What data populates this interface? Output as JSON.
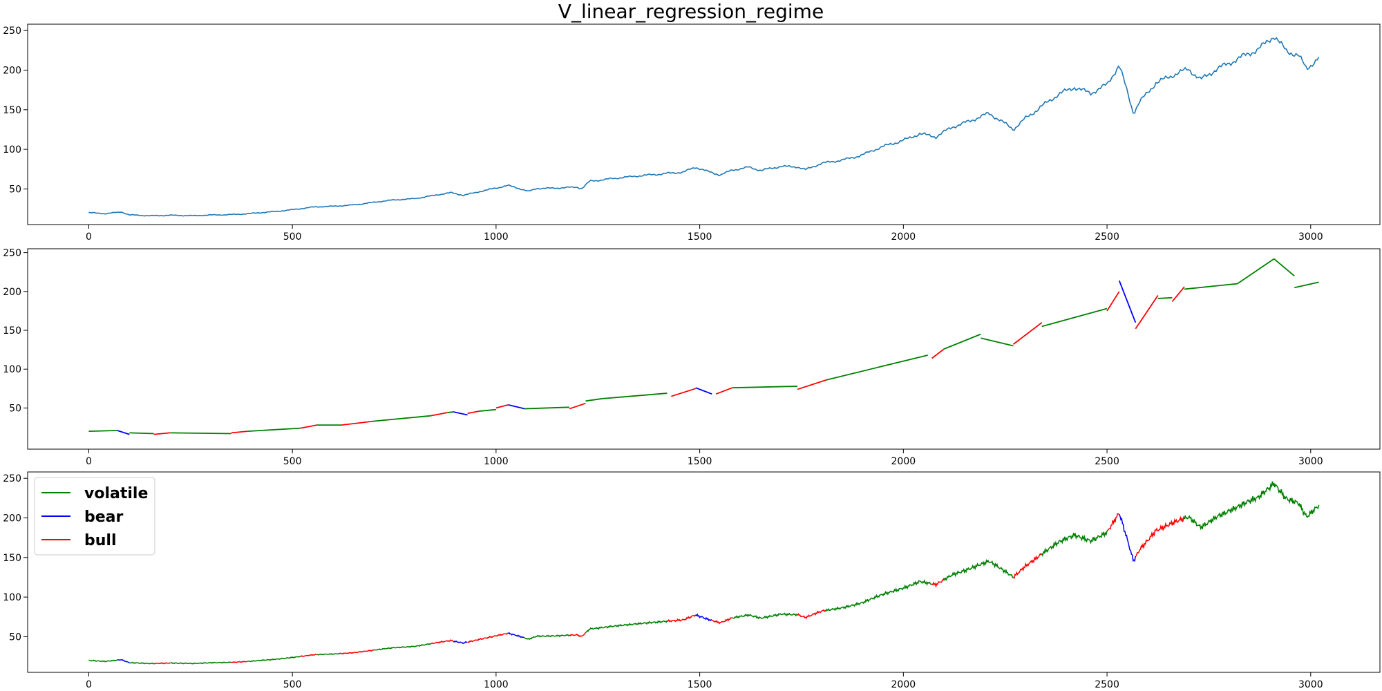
{
  "chart_data": [
    {
      "type": "line",
      "title": "V_linear_regression_regime",
      "xlabel": "",
      "ylabel": "",
      "xlim": [
        -150,
        3170
      ],
      "ylim": [
        5,
        258
      ],
      "xticks": [
        0,
        500,
        1000,
        1500,
        2000,
        2500,
        3000
      ],
      "yticks": [
        50,
        100,
        150,
        200,
        250
      ],
      "grid": false,
      "series": [
        {
          "color": "#1f77b4",
          "points": [
            [
              0,
              20
            ],
            [
              40,
              19
            ],
            [
              80,
              21
            ],
            [
              100,
              17
            ],
            [
              150,
              16
            ],
            [
              200,
              17
            ],
            [
              260,
              16
            ],
            [
              300,
              17
            ],
            [
              360,
              18
            ],
            [
              400,
              19
            ],
            [
              450,
              21
            ],
            [
              500,
              24
            ],
            [
              550,
              27
            ],
            [
              600,
              28
            ],
            [
              650,
              30
            ],
            [
              700,
              33
            ],
            [
              750,
              36
            ],
            [
              800,
              38
            ],
            [
              850,
              42
            ],
            [
              890,
              45
            ],
            [
              920,
              42
            ],
            [
              960,
              47
            ],
            [
              1000,
              51
            ],
            [
              1030,
              54
            ],
            [
              1060,
              50
            ],
            [
              1080,
              47
            ],
            [
              1100,
              51
            ],
            [
              1150,
              51
            ],
            [
              1200,
              52
            ],
            [
              1210,
              50
            ],
            [
              1230,
              60
            ],
            [
              1280,
              63
            ],
            [
              1330,
              65
            ],
            [
              1380,
              68
            ],
            [
              1420,
              70
            ],
            [
              1460,
              71
            ],
            [
              1490,
              77
            ],
            [
              1520,
              72
            ],
            [
              1550,
              68
            ],
            [
              1580,
              74
            ],
            [
              1620,
              77
            ],
            [
              1650,
              73
            ],
            [
              1700,
              79
            ],
            [
              1740,
              78
            ],
            [
              1760,
              74
            ],
            [
              1800,
              82
            ],
            [
              1850,
              87
            ],
            [
              1900,
              93
            ],
            [
              1950,
              103
            ],
            [
              2000,
              112
            ],
            [
              2040,
              120
            ],
            [
              2080,
              115
            ],
            [
              2120,
              128
            ],
            [
              2180,
              140
            ],
            [
              2210,
              145
            ],
            [
              2240,
              135
            ],
            [
              2270,
              125
            ],
            [
              2300,
              140
            ],
            [
              2340,
              155
            ],
            [
              2380,
              168
            ],
            [
              2420,
              178
            ],
            [
              2460,
              172
            ],
            [
              2500,
              182
            ],
            [
              2530,
              205
            ],
            [
              2545,
              180
            ],
            [
              2565,
              145
            ],
            [
              2580,
              160
            ],
            [
              2620,
              185
            ],
            [
              2660,
              193
            ],
            [
              2700,
              200
            ],
            [
              2730,
              188
            ],
            [
              2770,
              203
            ],
            [
              2820,
              213
            ],
            [
              2870,
              225
            ],
            [
              2910,
              245
            ],
            [
              2940,
              225
            ],
            [
              2970,
              218
            ],
            [
              2990,
              200
            ],
            [
              3010,
              210
            ],
            [
              3020,
              215
            ]
          ]
        }
      ]
    },
    {
      "type": "line",
      "title": "",
      "xlabel": "",
      "ylabel": "",
      "xlim": [
        -150,
        3170
      ],
      "ylim": [
        -3,
        255
      ],
      "xticks": [
        0,
        500,
        1000,
        1500,
        2000,
        2500,
        3000
      ],
      "yticks": [
        50,
        100,
        150,
        200,
        250
      ],
      "grid": false,
      "note_regime_colors": {
        "volatile": "green",
        "bear": "blue",
        "bull": "red"
      },
      "segments": [
        {
          "regime": "volatile",
          "x": [
            0,
            70
          ],
          "y": [
            20,
            21
          ]
        },
        {
          "regime": "bear",
          "x": [
            70,
            100
          ],
          "y": [
            21,
            16
          ]
        },
        {
          "regime": "volatile",
          "x": [
            100,
            160
          ],
          "y": [
            18,
            17
          ]
        },
        {
          "regime": "bull",
          "x": [
            160,
            200
          ],
          "y": [
            16,
            18
          ]
        },
        {
          "regime": "volatile",
          "x": [
            200,
            350
          ],
          "y": [
            18,
            17
          ]
        },
        {
          "regime": "bull",
          "x": [
            350,
            390
          ],
          "y": [
            18,
            20
          ]
        },
        {
          "regime": "volatile",
          "x": [
            390,
            520
          ],
          "y": [
            20,
            24
          ]
        },
        {
          "regime": "bull",
          "x": [
            520,
            560
          ],
          "y": [
            24,
            28
          ]
        },
        {
          "regime": "volatile",
          "x": [
            560,
            620
          ],
          "y": [
            28,
            28
          ]
        },
        {
          "regime": "bull",
          "x": [
            620,
            700
          ],
          "y": [
            28,
            33
          ]
        },
        {
          "regime": "volatile",
          "x": [
            700,
            840
          ],
          "y": [
            33,
            40
          ]
        },
        {
          "regime": "bull",
          "x": [
            840,
            880
          ],
          "y": [
            40,
            44
          ]
        },
        {
          "regime": "volatile",
          "x": [
            880,
            895
          ],
          "y": [
            44,
            45
          ]
        },
        {
          "regime": "bear",
          "x": [
            895,
            930
          ],
          "y": [
            45,
            41
          ]
        },
        {
          "regime": "bull",
          "x": [
            930,
            960
          ],
          "y": [
            43,
            46
          ]
        },
        {
          "regime": "volatile",
          "x": [
            960,
            1000
          ],
          "y": [
            46,
            48
          ]
        },
        {
          "regime": "bull",
          "x": [
            1000,
            1030
          ],
          "y": [
            50,
            54
          ]
        },
        {
          "regime": "bear",
          "x": [
            1030,
            1070
          ],
          "y": [
            54,
            49
          ]
        },
        {
          "regime": "volatile",
          "x": [
            1070,
            1180
          ],
          "y": [
            49,
            51
          ]
        },
        {
          "regime": "bull",
          "x": [
            1180,
            1220
          ],
          "y": [
            49,
            56
          ]
        },
        {
          "regime": "volatile",
          "x": [
            1220,
            1260
          ],
          "y": [
            59,
            62
          ]
        },
        {
          "regime": "volatile",
          "x": [
            1260,
            1420
          ],
          "y": [
            62,
            69
          ]
        },
        {
          "regime": "bull",
          "x": [
            1430,
            1490
          ],
          "y": [
            65,
            75
          ]
        },
        {
          "regime": "bear",
          "x": [
            1490,
            1530
          ],
          "y": [
            76,
            68
          ]
        },
        {
          "regime": "bull",
          "x": [
            1540,
            1580
          ],
          "y": [
            68,
            76
          ]
        },
        {
          "regime": "volatile",
          "x": [
            1580,
            1740
          ],
          "y": [
            76,
            78
          ]
        },
        {
          "regime": "bull",
          "x": [
            1740,
            1810
          ],
          "y": [
            74,
            86
          ]
        },
        {
          "regime": "volatile",
          "x": [
            1810,
            2060
          ],
          "y": [
            86,
            118
          ]
        },
        {
          "regime": "bull",
          "x": [
            2070,
            2100
          ],
          "y": [
            114,
            126
          ]
        },
        {
          "regime": "volatile",
          "x": [
            2100,
            2190
          ],
          "y": [
            126,
            145
          ]
        },
        {
          "regime": "volatile",
          "x": [
            2190,
            2270
          ],
          "y": [
            140,
            130
          ]
        },
        {
          "regime": "bull",
          "x": [
            2270,
            2340
          ],
          "y": [
            132,
            160
          ]
        },
        {
          "regime": "volatile",
          "x": [
            2340,
            2500
          ],
          "y": [
            155,
            178
          ]
        },
        {
          "regime": "bull",
          "x": [
            2500,
            2530
          ],
          "y": [
            175,
            200
          ]
        },
        {
          "regime": "bear",
          "x": [
            2530,
            2570
          ],
          "y": [
            214,
            160
          ]
        },
        {
          "regime": "bull",
          "x": [
            2570,
            2625
          ],
          "y": [
            152,
            195
          ]
        },
        {
          "regime": "volatile",
          "x": [
            2625,
            2660
          ],
          "y": [
            191,
            192
          ]
        },
        {
          "regime": "bull",
          "x": [
            2660,
            2690
          ],
          "y": [
            187,
            206
          ]
        },
        {
          "regime": "volatile",
          "x": [
            2690,
            2820
          ],
          "y": [
            203,
            210
          ]
        },
        {
          "regime": "volatile",
          "x": [
            2820,
            2910
          ],
          "y": [
            210,
            242
          ]
        },
        {
          "regime": "volatile",
          "x": [
            2910,
            2960
          ],
          "y": [
            242,
            220
          ]
        },
        {
          "regime": "volatile",
          "x": [
            2960,
            3020
          ],
          "y": [
            205,
            212
          ]
        }
      ]
    },
    {
      "type": "line",
      "title": "",
      "xlabel": "",
      "ylabel": "",
      "xlim": [
        -150,
        3170
      ],
      "ylim": [
        5,
        258
      ],
      "xticks": [
        0,
        500,
        1000,
        1500,
        2000,
        2500,
        3000
      ],
      "yticks": [
        50,
        100,
        150,
        200,
        250
      ],
      "grid": false,
      "legend": {
        "placement": "upper-left",
        "entries": [
          {
            "label": "volatile",
            "color": "#008000"
          },
          {
            "label": "bear",
            "color": "#0000ff"
          },
          {
            "label": "bull",
            "color": "#ff0000"
          }
        ]
      },
      "regimes": [
        {
          "regime": "volatile",
          "x": [
            0,
            70
          ]
        },
        {
          "regime": "bear",
          "x": [
            70,
            100
          ]
        },
        {
          "regime": "volatile",
          "x": [
            100,
            160
          ]
        },
        {
          "regime": "bull",
          "x": [
            160,
            200
          ]
        },
        {
          "regime": "volatile",
          "x": [
            200,
            350
          ]
        },
        {
          "regime": "bull",
          "x": [
            350,
            390
          ]
        },
        {
          "regime": "volatile",
          "x": [
            390,
            520
          ]
        },
        {
          "regime": "bull",
          "x": [
            520,
            560
          ]
        },
        {
          "regime": "volatile",
          "x": [
            560,
            620
          ]
        },
        {
          "regime": "bull",
          "x": [
            620,
            700
          ]
        },
        {
          "regime": "volatile",
          "x": [
            700,
            840
          ]
        },
        {
          "regime": "bull",
          "x": [
            840,
            895
          ]
        },
        {
          "regime": "bear",
          "x": [
            895,
            930
          ]
        },
        {
          "regime": "bull",
          "x": [
            930,
            1000
          ]
        },
        {
          "regime": "bull",
          "x": [
            1000,
            1030
          ]
        },
        {
          "regime": "bear",
          "x": [
            1030,
            1070
          ]
        },
        {
          "regime": "volatile",
          "x": [
            1070,
            1180
          ]
        },
        {
          "regime": "bull",
          "x": [
            1180,
            1220
          ]
        },
        {
          "regime": "volatile",
          "x": [
            1220,
            1420
          ]
        },
        {
          "regime": "bull",
          "x": [
            1420,
            1490
          ]
        },
        {
          "regime": "bear",
          "x": [
            1490,
            1530
          ]
        },
        {
          "regime": "bull",
          "x": [
            1530,
            1580
          ]
        },
        {
          "regime": "volatile",
          "x": [
            1580,
            1740
          ]
        },
        {
          "regime": "bull",
          "x": [
            1740,
            1810
          ]
        },
        {
          "regime": "volatile",
          "x": [
            1810,
            2070
          ]
        },
        {
          "regime": "bull",
          "x": [
            2070,
            2100
          ]
        },
        {
          "regime": "volatile",
          "x": [
            2100,
            2270
          ]
        },
        {
          "regime": "bull",
          "x": [
            2270,
            2340
          ]
        },
        {
          "regime": "volatile",
          "x": [
            2340,
            2500
          ]
        },
        {
          "regime": "bull",
          "x": [
            2500,
            2530
          ]
        },
        {
          "regime": "bear",
          "x": [
            2530,
            2570
          ]
        },
        {
          "regime": "bull",
          "x": [
            2570,
            2690
          ]
        },
        {
          "regime": "volatile",
          "x": [
            2690,
            3020
          ]
        }
      ]
    }
  ]
}
